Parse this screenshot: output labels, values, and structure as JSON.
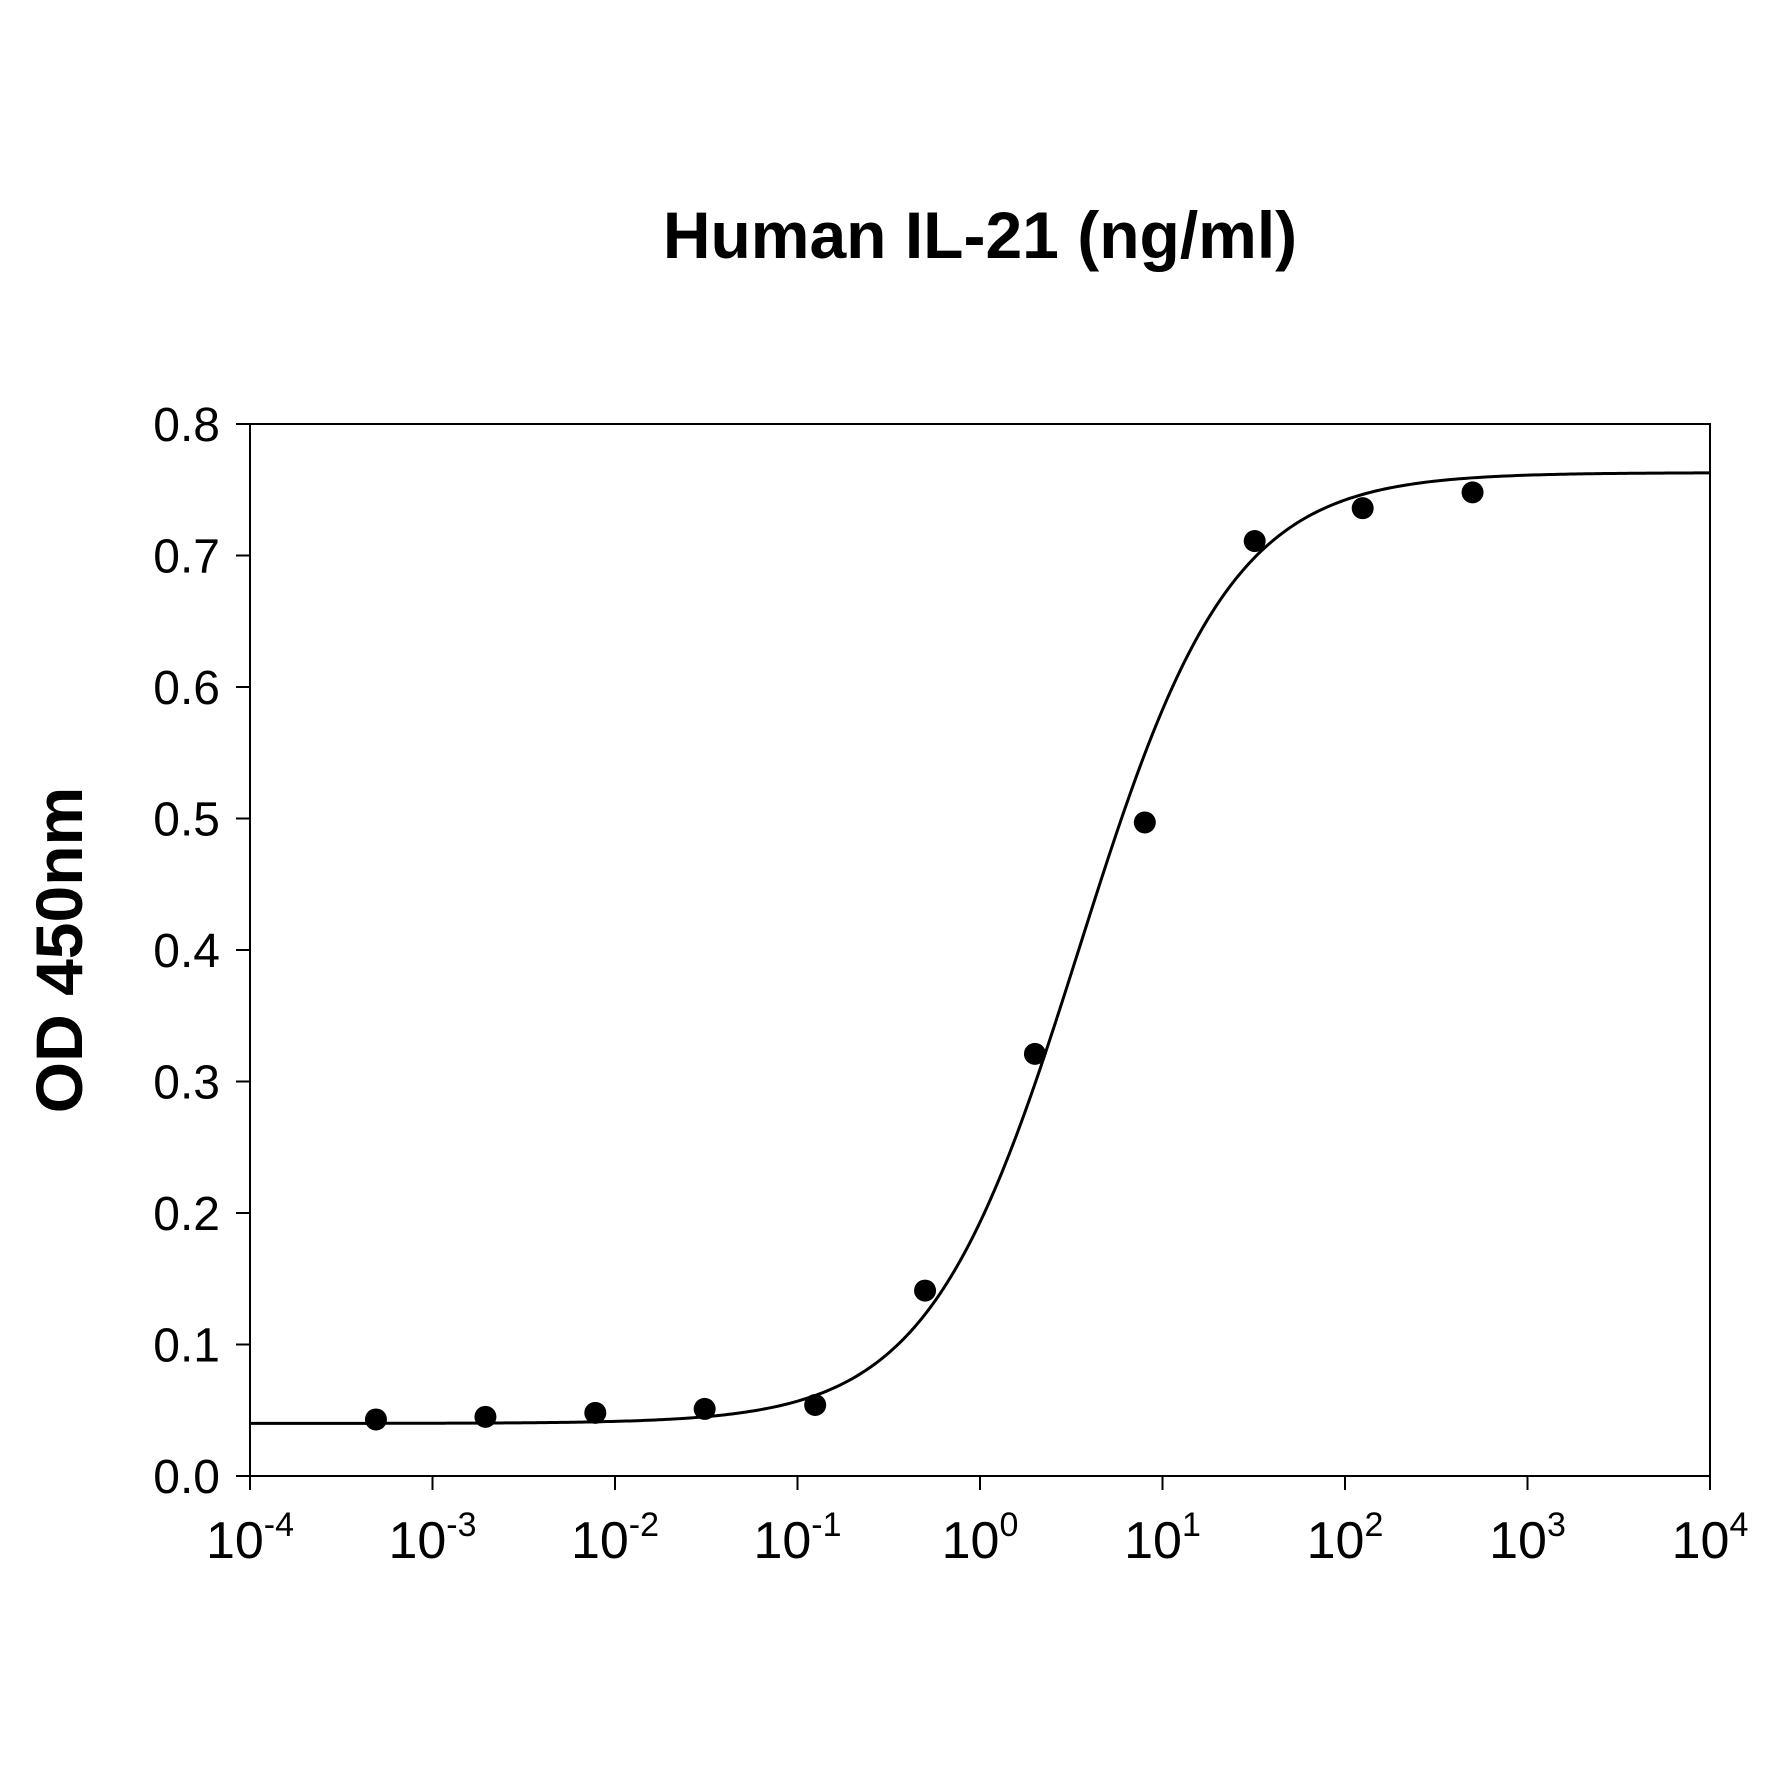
{
  "chart_data": {
    "type": "scatter",
    "title": "Human IL-21 (ng/ml)",
    "xlabel": "",
    "ylabel": "OD 450nm",
    "x_scale": "log",
    "xlim": [
      0.0001,
      10000
    ],
    "ylim": [
      0,
      0.8
    ],
    "grid": false,
    "legend": "none",
    "x_ticks": [
      {
        "base": "10",
        "exp": "-4"
      },
      {
        "base": "10",
        "exp": "-3"
      },
      {
        "base": "10",
        "exp": "-2"
      },
      {
        "base": "10",
        "exp": "-1"
      },
      {
        "base": "10",
        "exp": "0"
      },
      {
        "base": "10",
        "exp": "1"
      },
      {
        "base": "10",
        "exp": "2"
      },
      {
        "base": "10",
        "exp": "3"
      },
      {
        "base": "10",
        "exp": "4"
      }
    ],
    "y_ticks": [
      "0.0",
      "0.1",
      "0.2",
      "0.3",
      "0.4",
      "0.5",
      "0.6",
      "0.7",
      "0.8"
    ],
    "points": [
      {
        "x": 0.00049,
        "y": 0.043
      },
      {
        "x": 0.00195,
        "y": 0.045
      },
      {
        "x": 0.0078,
        "y": 0.048
      },
      {
        "x": 0.031,
        "y": 0.051
      },
      {
        "x": 0.125,
        "y": 0.054
      },
      {
        "x": 0.5,
        "y": 0.141
      },
      {
        "x": 2.0,
        "y": 0.321
      },
      {
        "x": 8.0,
        "y": 0.497
      },
      {
        "x": 32.0,
        "y": 0.711
      },
      {
        "x": 125.0,
        "y": 0.736
      },
      {
        "x": 500.0,
        "y": 0.748
      }
    ],
    "fit": {
      "model": "4PL",
      "bottom": 0.04,
      "top": 0.763,
      "ec50": 3.5,
      "hill": 1.05
    },
    "colors": {
      "points": "#000000",
      "curve": "#000000",
      "axes": "#000000"
    }
  }
}
